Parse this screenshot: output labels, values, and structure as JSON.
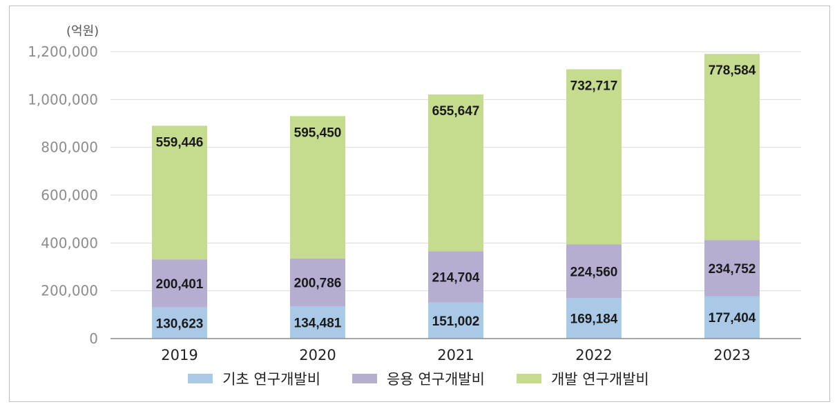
{
  "chart_data": {
    "type": "bar",
    "stacked": true,
    "unit_label": "(억원)",
    "categories": [
      "2019",
      "2020",
      "2021",
      "2022",
      "2023"
    ],
    "series": [
      {
        "name": "기초 연구개발비",
        "color": "#a9c9e6",
        "values": [
          130623,
          134481,
          151002,
          169184,
          177404
        ],
        "labels": [
          "130,623",
          "134,481",
          "151,002",
          "169,184",
          "177,404"
        ]
      },
      {
        "name": "응용 연구개발비",
        "color": "#b5aed0",
        "values": [
          200401,
          200786,
          214704,
          224560,
          234752
        ],
        "labels": [
          "200,401",
          "200,786",
          "214,704",
          "224,560",
          "234,752"
        ]
      },
      {
        "name": "개발 연구개발비",
        "color": "#c5db8e",
        "values": [
          559446,
          595450,
          655647,
          732717,
          778584
        ],
        "labels": [
          "559,446",
          "595,450",
          "655,647",
          "732,717",
          "778,584"
        ]
      }
    ],
    "ylim": [
      0,
      1200000
    ],
    "yticks": [
      0,
      200000,
      400000,
      600000,
      800000,
      1000000,
      1200000
    ],
    "ytick_labels": [
      "0",
      "200,000",
      "400,000",
      "600,000",
      "800,000",
      "1,000,000",
      "1,200,000"
    ],
    "grid": true,
    "legend_position": "bottom"
  }
}
